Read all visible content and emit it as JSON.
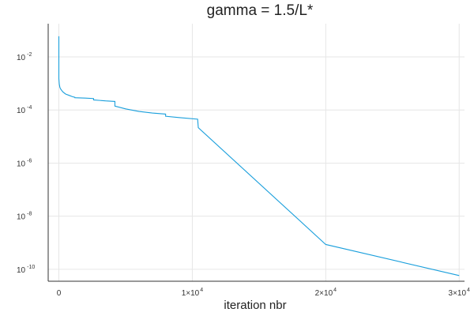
{
  "chart_data": {
    "type": "line",
    "title": "gamma = 1.5/L*",
    "xlabel": "iteration nbr",
    "ylabel": "",
    "xlim": [
      -800,
      30400
    ],
    "ylim_log10": [
      -10.45,
      -0.75
    ],
    "yscale": "log",
    "grid": true,
    "legend": "none",
    "x_ticks": [
      {
        "value": 0,
        "mantissa": "0",
        "exponent": ""
      },
      {
        "value": 10000,
        "mantissa": "1×10",
        "exponent": "4"
      },
      {
        "value": 20000,
        "mantissa": "2×10",
        "exponent": "4"
      },
      {
        "value": 30000,
        "mantissa": "3×10",
        "exponent": "4"
      }
    ],
    "y_ticks": [
      {
        "log10": -2,
        "mantissa": "10",
        "exponent": "-2"
      },
      {
        "log10": -4,
        "mantissa": "10",
        "exponent": "-4"
      },
      {
        "log10": -6,
        "mantissa": "10",
        "exponent": "-6"
      },
      {
        "log10": -8,
        "mantissa": "10",
        "exponent": "-8"
      },
      {
        "log10": -10,
        "mantissa": "10",
        "exponent": "-10"
      }
    ],
    "series": [
      {
        "color": "#1a9fdc",
        "x": [
          0,
          0,
          30,
          80,
          150,
          300,
          500,
          800,
          1000,
          1200,
          1200,
          2000,
          2600,
          2600,
          3500,
          4200,
          4200,
          5000,
          6000,
          7000,
          8000,
          8000,
          9000,
          10400,
          10400,
          10450,
          20000,
          30000
        ],
        "y": [
          0.06,
          0.0015,
          0.00095,
          0.0007,
          0.0006,
          0.00048,
          0.0004,
          0.00035,
          0.00032,
          0.0003,
          0.00029,
          0.00028,
          0.00027,
          0.00024,
          0.00022,
          0.00021,
          0.00014,
          0.00011,
          8.8e-05,
          7.7e-05,
          7e-05,
          5.8e-05,
          5.2e-05,
          4.5e-05,
          4.5e-05,
          2.15e-05,
          8.6e-10,
          5.8e-11
        ]
      }
    ]
  }
}
